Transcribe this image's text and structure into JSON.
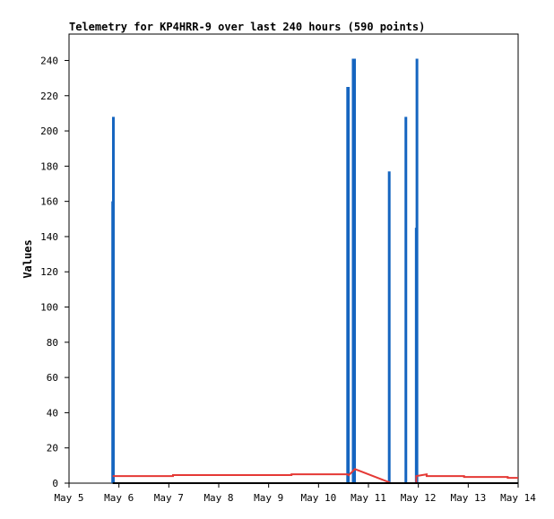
{
  "chart_data": {
    "type": "line",
    "title": "Telemetry for KP4HRR-9 over last 240 hours (590 points)",
    "xlabel": "",
    "ylabel": "Values",
    "xlim": [
      "May 5",
      "May 14"
    ],
    "x_ticks": [
      "May 5",
      "May 6",
      "May 7",
      "May 8",
      "May 9",
      "May 10",
      "May 11",
      "May 12",
      "May 13",
      "May 14"
    ],
    "ylim": [
      0,
      255
    ],
    "y_ticks": [
      0,
      20,
      40,
      60,
      80,
      100,
      120,
      140,
      160,
      180,
      200,
      220,
      240
    ],
    "grid": false,
    "legend": "none",
    "series": [
      {
        "color": "#1565c0",
        "style": "spikes",
        "points": [
          {
            "x": "May 5 21:00",
            "y": 160
          },
          {
            "x": "May 5 21:20",
            "y": 208
          },
          {
            "x": "May 10 14:00",
            "y": 225
          },
          {
            "x": "May 10 14:20",
            "y": 225
          },
          {
            "x": "May 10 16:40",
            "y": 241
          },
          {
            "x": "May 10 17:00",
            "y": 241
          },
          {
            "x": "May 10 17:20",
            "y": 241
          },
          {
            "x": "May 11 10:00",
            "y": 177
          },
          {
            "x": "May 11 18:00",
            "y": 208
          },
          {
            "x": "May 11 23:00",
            "y": 145
          },
          {
            "x": "May 11 23:20",
            "y": 241
          }
        ]
      },
      {
        "color": "#e53935",
        "style": "line",
        "points": [
          {
            "x": "May 5 21:00",
            "y": 4
          },
          {
            "x": "May 7 02:00",
            "y": 4
          },
          {
            "x": "May 7 02:00",
            "y": 4.6
          },
          {
            "x": "May 9 11:00",
            "y": 4.6
          },
          {
            "x": "May 9 11:00",
            "y": 5
          },
          {
            "x": "May 10 14:00",
            "y": 5
          },
          {
            "x": "May 10 14:30",
            "y": 4.5
          },
          {
            "x": "May 10 17:30",
            "y": 8
          },
          {
            "x": "May 11 10:00",
            "y": 0.5
          },
          {
            "x": "May 11 10:00",
            "y": 0
          },
          {
            "x": "May 11 23:00",
            "y": 0
          },
          {
            "x": "May 11 23:00",
            "y": 4
          },
          {
            "x": "May 12 04:00",
            "y": 5
          },
          {
            "x": "May 12 04:00",
            "y": 4
          },
          {
            "x": "May 12 22:00",
            "y": 4
          },
          {
            "x": "May 12 22:00",
            "y": 3.5
          },
          {
            "x": "May 13 19:00",
            "y": 3.5
          },
          {
            "x": "May 13 19:00",
            "y": 3
          },
          {
            "x": "May 13 23:59",
            "y": 3
          }
        ]
      },
      {
        "color": "#000000",
        "style": "line",
        "points": [
          {
            "x": "May 5 21:00",
            "y": 0
          },
          {
            "x": "May 13 23:59",
            "y": 0
          }
        ]
      }
    ]
  }
}
